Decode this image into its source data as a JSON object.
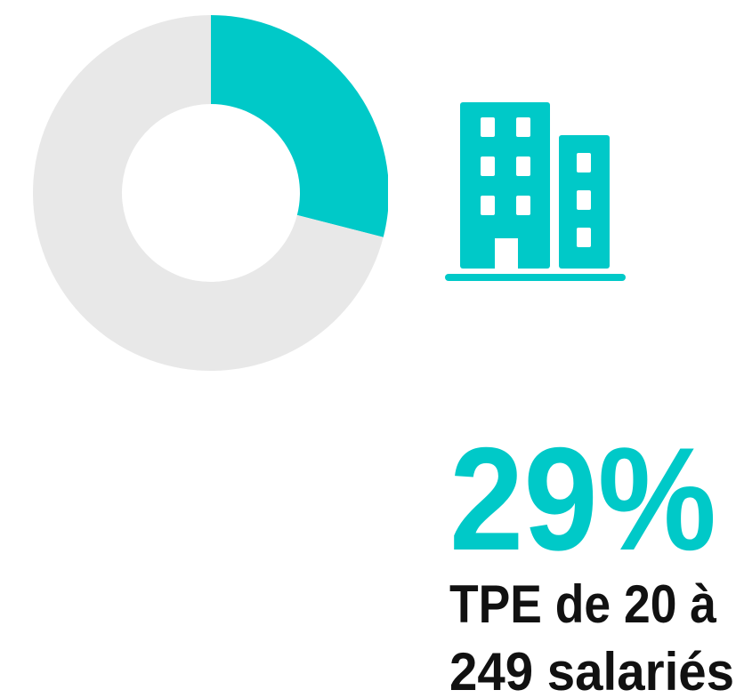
{
  "chart_data": {
    "type": "pie",
    "donut": true,
    "categories": [
      "TPE de 20 à 249 salariés",
      null
    ],
    "values": [
      29,
      71
    ],
    "value_labels": [
      "29%",
      null
    ],
    "colors": [
      "#00c9c8",
      "#e8e8e8"
    ]
  }
}
